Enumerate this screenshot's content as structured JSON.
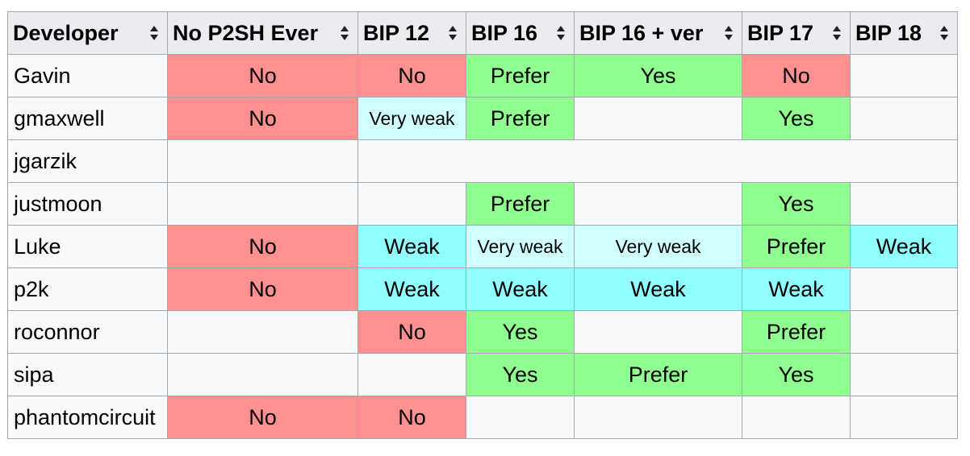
{
  "headers": [
    "Developer",
    "No P2SH Ever",
    "BIP 12",
    "BIP 16",
    "BIP 16 + ver",
    "BIP 17",
    "BIP 18"
  ],
  "rows": [
    {
      "developer": "Gavin",
      "cells": [
        {
          "text": "No",
          "cls": "no"
        },
        {
          "text": "No",
          "cls": "no"
        },
        {
          "text": "Prefer",
          "cls": "prefer"
        },
        {
          "text": "Yes",
          "cls": "yes"
        },
        {
          "text": "No",
          "cls": "no"
        },
        {
          "text": "",
          "cls": ""
        }
      ]
    },
    {
      "developer": "gmaxwell",
      "cells": [
        {
          "text": "No",
          "cls": "no"
        },
        {
          "text": "Very weak",
          "cls": "veryweak"
        },
        {
          "text": "Prefer",
          "cls": "prefer"
        },
        {
          "text": "",
          "cls": ""
        },
        {
          "text": "Yes",
          "cls": "yes"
        },
        {
          "text": "",
          "cls": ""
        }
      ]
    },
    {
      "developer": "jgarzik",
      "cells": [
        {
          "text": "",
          "cls": ""
        },
        {
          "text": "",
          "cls": "",
          "colspan": 5
        }
      ]
    },
    {
      "developer": "justmoon",
      "cells": [
        {
          "text": "",
          "cls": ""
        },
        {
          "text": "",
          "cls": ""
        },
        {
          "text": "Prefer",
          "cls": "prefer"
        },
        {
          "text": "",
          "cls": ""
        },
        {
          "text": "Yes",
          "cls": "yes"
        },
        {
          "text": "",
          "cls": ""
        }
      ]
    },
    {
      "developer": "Luke",
      "cells": [
        {
          "text": "No",
          "cls": "no"
        },
        {
          "text": "Weak",
          "cls": "weak"
        },
        {
          "text": "Very weak",
          "cls": "veryweak"
        },
        {
          "text": "Very weak",
          "cls": "veryweak"
        },
        {
          "text": "Prefer",
          "cls": "prefer"
        },
        {
          "text": "Weak",
          "cls": "weak"
        }
      ]
    },
    {
      "developer": "p2k",
      "cells": [
        {
          "text": "No",
          "cls": "no"
        },
        {
          "text": "Weak",
          "cls": "weak"
        },
        {
          "text": "Weak",
          "cls": "weak"
        },
        {
          "text": "Weak",
          "cls": "weak"
        },
        {
          "text": "Weak",
          "cls": "weak"
        },
        {
          "text": "",
          "cls": ""
        }
      ]
    },
    {
      "developer": "roconnor",
      "cells": [
        {
          "text": "",
          "cls": ""
        },
        {
          "text": "No",
          "cls": "no"
        },
        {
          "text": "Yes",
          "cls": "yes"
        },
        {
          "text": "",
          "cls": ""
        },
        {
          "text": "Prefer",
          "cls": "prefer"
        },
        {
          "text": "",
          "cls": ""
        }
      ]
    },
    {
      "developer": "sipa",
      "cells": [
        {
          "text": "",
          "cls": ""
        },
        {
          "text": "",
          "cls": ""
        },
        {
          "text": "Yes",
          "cls": "yes"
        },
        {
          "text": "Prefer",
          "cls": "prefer"
        },
        {
          "text": "Yes",
          "cls": "yes"
        },
        {
          "text": "",
          "cls": ""
        }
      ]
    },
    {
      "developer": "phantomcircuit",
      "cells": [
        {
          "text": "No",
          "cls": "no"
        },
        {
          "text": "No",
          "cls": "no"
        },
        {
          "text": "",
          "cls": ""
        },
        {
          "text": "",
          "cls": ""
        },
        {
          "text": "",
          "cls": ""
        },
        {
          "text": "",
          "cls": ""
        }
      ]
    }
  ],
  "colors": {
    "no": "#ff9090",
    "yes": "#90ff90",
    "prefer": "#90ff90",
    "weak": "#90ffff",
    "very_weak": "#d0ffff",
    "empty": "#f8f9fa",
    "header": "#eaecf0"
  },
  "icons": {
    "sort": "sort-arrows-icon"
  }
}
